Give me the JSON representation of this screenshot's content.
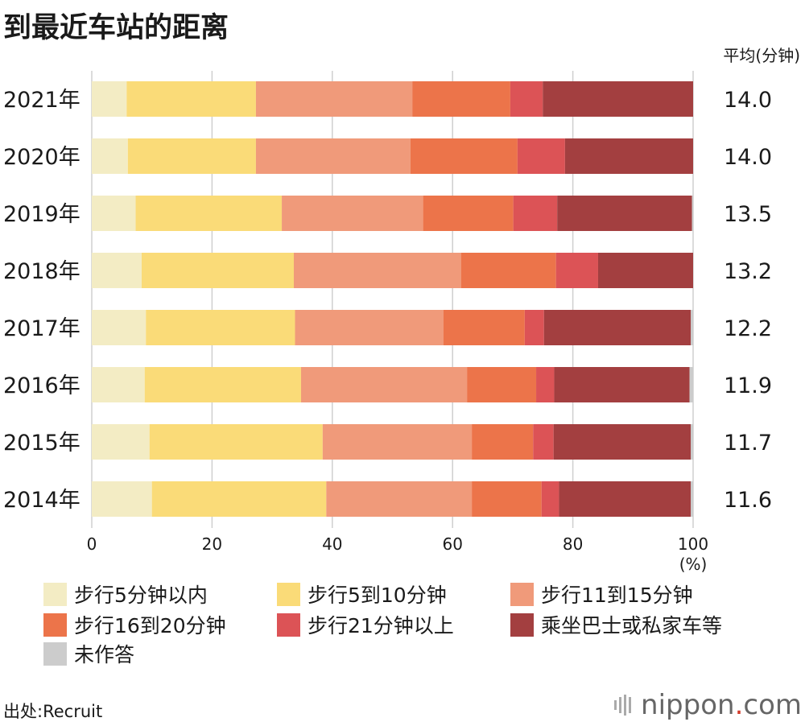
{
  "title": "到最近车站的距离",
  "avg_header": "平均(分钟)",
  "source": "出处:Recruit",
  "brand": {
    "name": "nippon",
    "dot": ".",
    "suffix": "com",
    "icon": "nippon-logo-icon"
  },
  "chart_data": {
    "type": "bar",
    "orientation": "horizontal",
    "stacked": true,
    "title": "到最近车站的距离",
    "xlabel": "(%)",
    "ylabel": "",
    "xlim": [
      0,
      100
    ],
    "xticks": [
      "0",
      "20",
      "40",
      "60",
      "80",
      "100"
    ],
    "grid": true,
    "categories": [
      "2021年",
      "2020年",
      "2019年",
      "2018年",
      "2017年",
      "2016年",
      "2015年",
      "2014年"
    ],
    "averages": [
      "14.0",
      "14.0",
      "13.5",
      "13.2",
      "12.2",
      "11.9",
      "11.7",
      "11.6"
    ],
    "series": [
      {
        "name": "步行5分钟以内",
        "color": "#f3ecc4",
        "values": [
          5.8,
          6.0,
          7.3,
          8.3,
          9.0,
          8.8,
          9.6,
          10.0
        ]
      },
      {
        "name": "步行5到10分钟",
        "color": "#fadb78",
        "values": [
          21.5,
          21.3,
          24.3,
          25.3,
          24.8,
          26.0,
          28.8,
          29.0
        ]
      },
      {
        "name": "步行11到15分钟",
        "color": "#f09a7a",
        "values": [
          26.0,
          25.7,
          23.5,
          27.8,
          24.7,
          27.6,
          24.8,
          24.2
        ]
      },
      {
        "name": "步行16到20分钟",
        "color": "#ec744a",
        "values": [
          16.3,
          17.8,
          15.0,
          15.8,
          13.5,
          11.5,
          10.2,
          11.6
        ]
      },
      {
        "name": "步行21分钟以上",
        "color": "#dc5356",
        "values": [
          5.4,
          7.9,
          7.3,
          7.0,
          3.2,
          3.0,
          3.4,
          2.9
        ]
      },
      {
        "name": "乘坐巴士或私家车等",
        "color": "#a33f40",
        "values": [
          25.0,
          21.3,
          22.4,
          15.8,
          24.4,
          22.5,
          22.8,
          21.9
        ]
      },
      {
        "name": "未作答",
        "color": "#cccccc",
        "values": [
          0.0,
          0.0,
          0.2,
          0.0,
          0.4,
          0.6,
          0.4,
          0.4
        ]
      }
    ]
  }
}
